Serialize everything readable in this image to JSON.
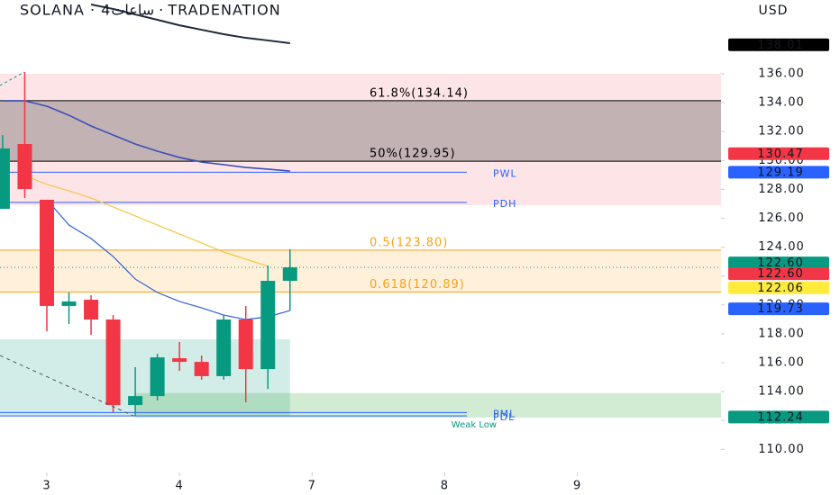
{
  "chart_data": {
    "type": "candlestick",
    "title": "SOLANA · 4ساعات · TRADENATION",
    "currency": "USD",
    "up_color": "#089981",
    "down_color": "#f23645",
    "x": [
      0,
      1,
      2,
      3,
      4,
      5,
      6,
      7,
      8,
      9,
      10,
      11,
      12,
      13
    ],
    "open": [
      126.65,
      131.14,
      127.28,
      119.93,
      120.36,
      118.99,
      113.07,
      113.69,
      116.31,
      116.06,
      115.07,
      118.99,
      115.56,
      121.67
    ],
    "high": [
      131.76,
      136.12,
      127.28,
      120.86,
      120.67,
      119.3,
      115.69,
      116.62,
      117.43,
      116.5,
      119.3,
      119.93,
      122.73,
      123.85
    ],
    "low": [
      126.65,
      127.4,
      118.18,
      118.68,
      117.93,
      112.57,
      112.32,
      113.38,
      115.44,
      114.82,
      114.82,
      113.26,
      114.19,
      119.61
    ],
    "close": [
      130.83,
      128.02,
      119.93,
      120.24,
      118.99,
      113.07,
      113.69,
      116.37,
      116.06,
      115.07,
      118.99,
      115.56,
      121.67,
      122.6
    ],
    "lines": [
      {
        "color": "#1e2a3a",
        "width": 2,
        "values": [
          null,
          null,
          null,
          null,
          140.8,
          140.49,
          140.11,
          139.74,
          139.36,
          139.05,
          138.74,
          138.49,
          138.31,
          138.12
        ]
      },
      {
        "color": "#3a4fb8",
        "width": 1.6,
        "values": [
          134.13,
          134.13,
          133.76,
          133.13,
          132.39,
          131.76,
          131.14,
          130.64,
          130.21,
          129.89,
          129.71,
          129.52,
          129.4,
          129.27
        ]
      },
      {
        "color": "#2f5fd6",
        "width": 1.2,
        "values": [
          null,
          null,
          127.28,
          125.53,
          124.6,
          123.35,
          121.79,
          120.86,
          120.24,
          119.8,
          119.3,
          118.99,
          119.18,
          119.61
        ]
      },
      {
        "color": "#f5c542",
        "width": 1.2,
        "values": [
          null,
          128.96,
          128.34,
          127.9,
          127.4,
          126.78,
          126.16,
          125.53,
          124.91,
          124.29,
          123.66,
          123.17,
          122.67,
          null
        ]
      }
    ],
    "zones": [
      {
        "from": 126.9,
        "to": 136.0,
        "x0": -0.12,
        "x1": 32.5,
        "color": "rgba(242,54,69,0.13)"
      },
      {
        "from": 129.95,
        "to": 134.14,
        "x0": -0.12,
        "x1": 32.5,
        "color": "rgba(60,60,60,0.30)"
      },
      {
        "from": 120.89,
        "to": 123.8,
        "x0": -0.12,
        "x1": 32.5,
        "color": "rgba(255,152,0,0.15)"
      },
      {
        "from": 112.32,
        "to": 117.62,
        "x0": -0.12,
        "x1": 13.0,
        "color": "rgba(8,153,129,0.18)"
      },
      {
        "from": 112.2,
        "to": 113.9,
        "x0": 6.0,
        "x1": 32.5,
        "color": "rgba(76,175,80,0.25)"
      }
    ],
    "levels": [
      {
        "value": 134.14,
        "label": "61.8%(134.14)",
        "color": "#000000",
        "x0": -0.12,
        "x1": 32.5
      },
      {
        "value": 129.95,
        "label": "50%(129.95)",
        "color": "#000000",
        "x0": -0.12,
        "x1": 32.5
      },
      {
        "value": 129.19,
        "label": "PWL",
        "color": "#2962ff",
        "x0": -0.12,
        "x1": 21.0
      },
      {
        "value": 127.1,
        "label": "PDH",
        "color": "#2962ff",
        "x0": -0.12,
        "x1": 21.0
      },
      {
        "value": 123.8,
        "label": "0.5(123.80)",
        "color": "#f7a21b",
        "x0": -0.12,
        "x1": 32.5
      },
      {
        "value": 120.89,
        "label": "0.618(120.89)",
        "color": "#f7a21b",
        "x0": -0.12,
        "x1": 32.5
      },
      {
        "value": 112.55,
        "label": "PML",
        "color": "#2962ff",
        "x0": -0.12,
        "x1": 21.0
      },
      {
        "value": 112.32,
        "label": "PDL",
        "color": "#2962ff",
        "x0": -0.12,
        "x1": 21.0
      }
    ],
    "annotations": [
      {
        "text": "Weak Low",
        "x": 20.3,
        "y": 111.7,
        "color": "#089981"
      }
    ],
    "price_labels": [
      {
        "value": 138.01,
        "label": "138.01",
        "color": "#000000"
      },
      {
        "value": 130.47,
        "label": "130.47",
        "color": "#f23645"
      },
      {
        "value": 129.19,
        "label": "129.19",
        "color": "#2962ff"
      },
      {
        "value": 122.6,
        "label": "122.60",
        "color": "#089981"
      },
      {
        "value": 122.6,
        "label": "122.60",
        "color": "#f23645"
      },
      {
        "value": 122.06,
        "label": "122.06",
        "color": "#ffeb3b"
      },
      {
        "value": 119.73,
        "label": "119.73",
        "color": "#2962ff"
      },
      {
        "value": 112.24,
        "label": "112.24",
        "color": "#089981"
      }
    ],
    "xlim": [
      -0.12,
      32.5
    ],
    "ylim": [
      108.4,
      141.11
    ],
    "xticks": [
      {
        "value": 2,
        "label": "3"
      },
      {
        "value": 8,
        "label": "4"
      },
      {
        "value": 14,
        "label": "7"
      },
      {
        "value": 20,
        "label": "8"
      },
      {
        "value": 26,
        "label": "9"
      }
    ],
    "yticks": [
      {
        "value": 110,
        "label": "110.00"
      },
      {
        "value": 112,
        "label": "112.00"
      },
      {
        "value": 114,
        "label": "114.00"
      },
      {
        "value": 116,
        "label": "116.00"
      },
      {
        "value": 118,
        "label": "118.00"
      },
      {
        "value": 120,
        "label": "120.00"
      },
      {
        "value": 122,
        "label": "122.00"
      },
      {
        "value": 124,
        "label": "124.00"
      },
      {
        "value": 126,
        "label": "126.00"
      },
      {
        "value": 128,
        "label": "128.00"
      },
      {
        "value": 130,
        "label": "130.00"
      },
      {
        "value": 132,
        "label": "132.00"
      },
      {
        "value": 134,
        "label": "134.00"
      },
      {
        "value": 136,
        "label": "136.00"
      }
    ]
  }
}
